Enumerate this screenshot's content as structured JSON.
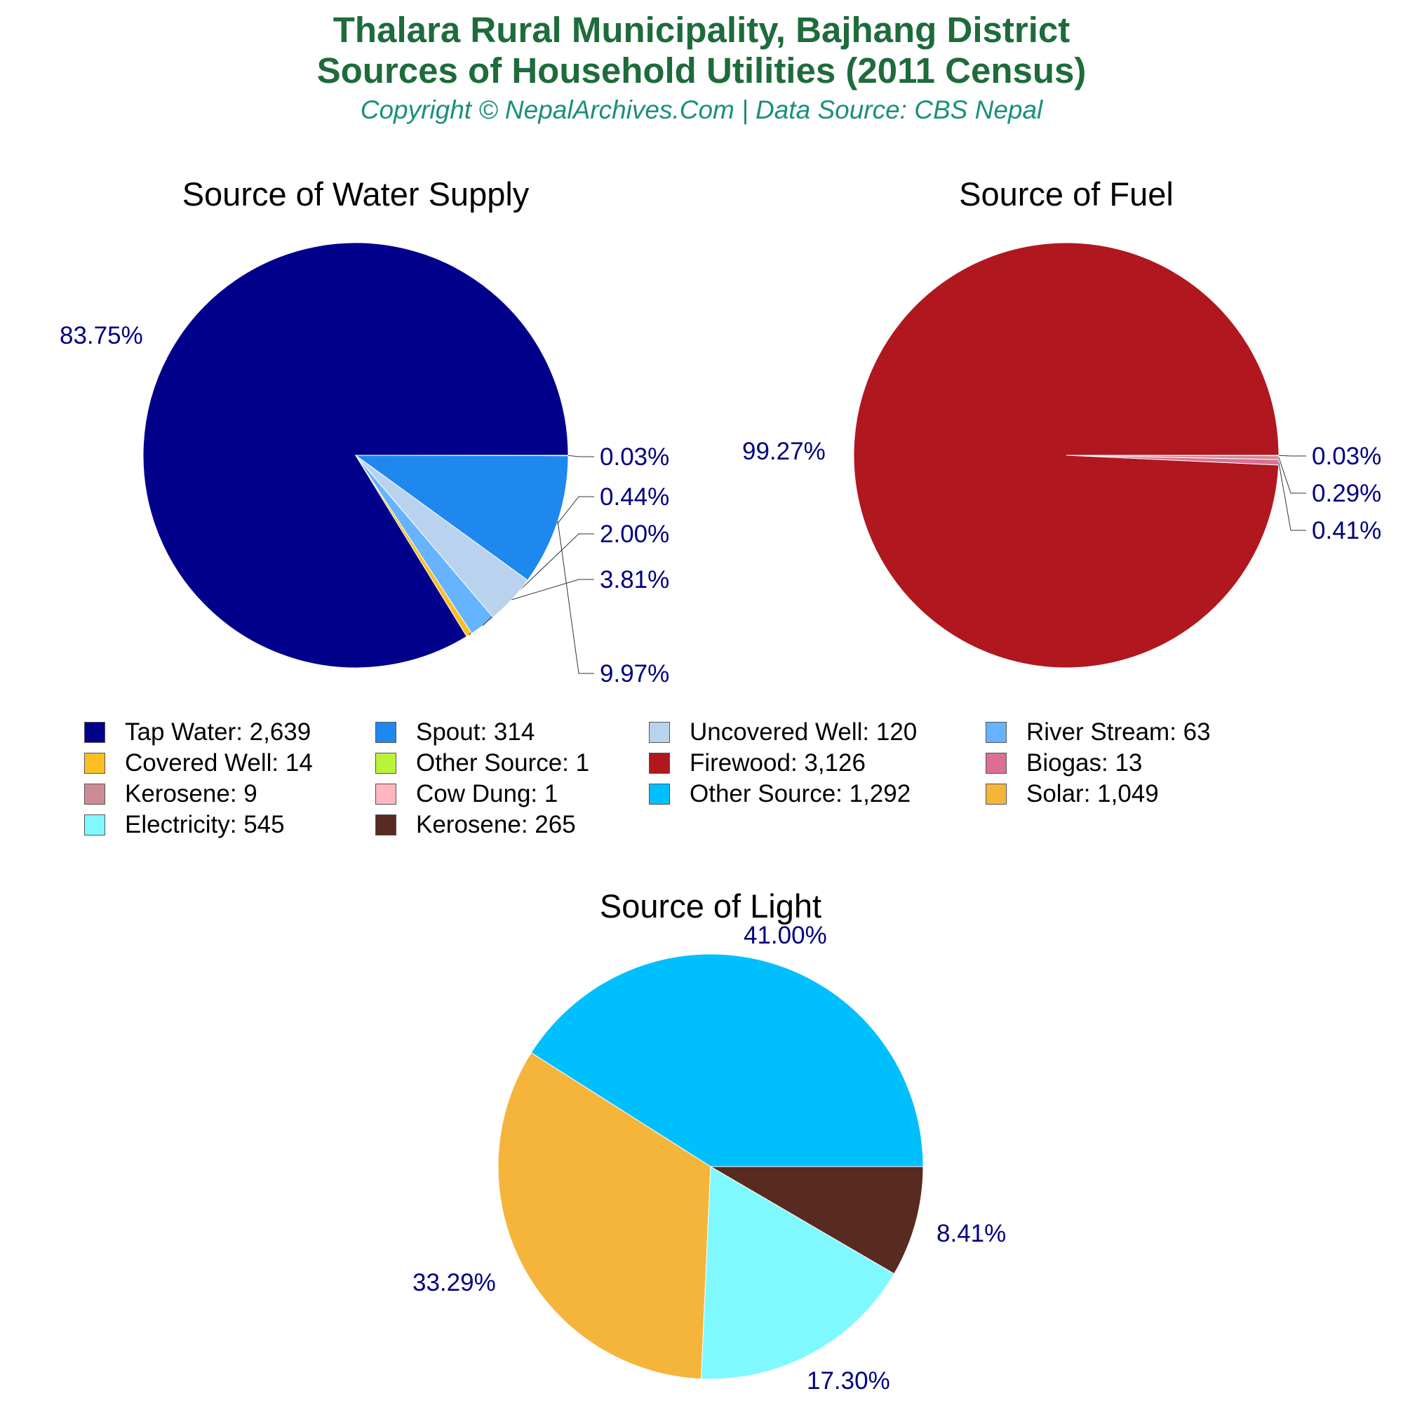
{
  "header": {
    "title_line1": "Thalara Rural Municipality, Bajhang District",
    "title_line2": "Sources of Household Utilities (2011 Census)",
    "subtitle": "Copyright © NepalArchives.Com | Data Source: CBS Nepal"
  },
  "chart_data": [
    {
      "type": "pie",
      "title": "Source of Water Supply",
      "slices": [
        {
          "label": "Tap Water",
          "value": 2639,
          "percent_label": "83.75%",
          "color": "#00008b"
        },
        {
          "label": "Covered Well",
          "value": 14,
          "percent_label": "0.44%",
          "color": "#fbbf24"
        },
        {
          "label": "River Stream",
          "value": 63,
          "percent_label": "2.00%",
          "color": "#66b3ff"
        },
        {
          "label": "Uncovered Well",
          "value": 120,
          "percent_label": "3.81%",
          "color": "#b9d3ee"
        },
        {
          "label": "Spout",
          "value": 314,
          "percent_label": "9.97%",
          "color": "#1e88ee"
        },
        {
          "label": "Other Source",
          "value": 1,
          "percent_label": "0.03%",
          "color": "#b8f53a"
        }
      ]
    },
    {
      "type": "pie",
      "title": "Source of Fuel",
      "slices": [
        {
          "label": "Firewood",
          "value": 3126,
          "percent_label": "99.27%",
          "color": "#b0171f"
        },
        {
          "label": "Biogas",
          "value": 13,
          "percent_label": "0.41%",
          "color": "#db7093"
        },
        {
          "label": "Kerosene",
          "value": 9,
          "percent_label": "0.29%",
          "color": "#cd8c95"
        },
        {
          "label": "Cow Dung",
          "value": 1,
          "percent_label": "0.03%",
          "color": "#ffb6c1"
        }
      ]
    },
    {
      "type": "pie",
      "title": "Source of Light",
      "slices": [
        {
          "label": "Other Source",
          "value": 1292,
          "percent_label": "41.00%",
          "color": "#00bfff"
        },
        {
          "label": "Solar",
          "value": 1049,
          "percent_label": "33.29%",
          "color": "#f5b43a"
        },
        {
          "label": "Electricity",
          "value": 545,
          "percent_label": "17.30%",
          "color": "#7ff9ff"
        },
        {
          "label": "Kerosene",
          "value": 265,
          "percent_label": "8.41%",
          "color": "#582a20"
        }
      ]
    }
  ],
  "legend": [
    {
      "label": "Tap Water: 2,639",
      "color": "#00008b"
    },
    {
      "label": "Spout: 314",
      "color": "#1e88ee"
    },
    {
      "label": "Uncovered Well: 120",
      "color": "#b9d3ee"
    },
    {
      "label": "River Stream: 63",
      "color": "#66b3ff"
    },
    {
      "label": "Covered Well: 14",
      "color": "#fbbf24"
    },
    {
      "label": "Other Source: 1",
      "color": "#b8f53a"
    },
    {
      "label": "Firewood: 3,126",
      "color": "#b0171f"
    },
    {
      "label": "Biogas: 13",
      "color": "#db7093"
    },
    {
      "label": "Kerosene: 9",
      "color": "#cd8c95"
    },
    {
      "label": "Cow Dung: 1",
      "color": "#ffb6c1"
    },
    {
      "label": "Other Source: 1,292",
      "color": "#00bfff"
    },
    {
      "label": "Solar: 1,049",
      "color": "#f5b43a"
    },
    {
      "label": "Electricity: 545",
      "color": "#7ff9ff"
    },
    {
      "label": "Kerosene: 265",
      "color": "#582a20"
    }
  ],
  "label_color": "#000080"
}
